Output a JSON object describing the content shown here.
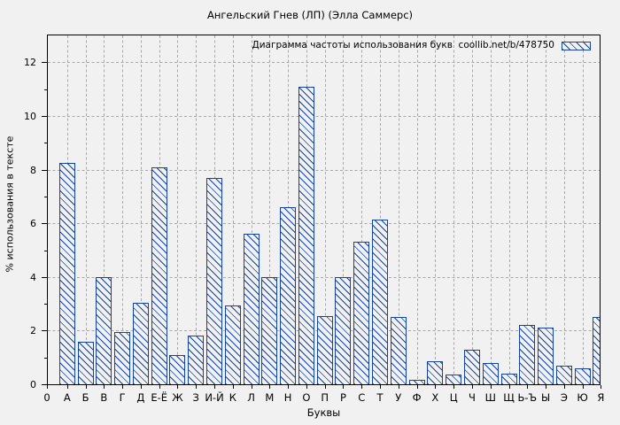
{
  "title": "Ангельский Гнев (ЛП) (Элла Саммерс)",
  "legend": {
    "text": "Диаграмма частоты использования букв  coollib.net/b/478750"
  },
  "chart_data": {
    "type": "bar",
    "title": "Ангельский Гнев (ЛП) (Элла Саммерс)",
    "legend_label": "Диаграмма частоты использования букв  coollib.net/b/478750",
    "legend_position": "top-right-inside",
    "xlabel": "Буквы",
    "ylabel": "% использования в тексте",
    "x_origin_label": "0",
    "y_ticks": [
      0,
      2,
      4,
      6,
      8,
      10,
      12
    ],
    "ylim": [
      0,
      13
    ],
    "grid": true,
    "grid_style": "dashed",
    "bar_color": "#1243a5",
    "bar_hatch": "\\\\",
    "grid_color": "#a8a8a8",
    "background_color": "#f1f1f1",
    "categories": [
      "А",
      "Б",
      "В",
      "Г",
      "Д",
      "Е-Ё",
      "Ж",
      "З",
      "И-Й",
      "К",
      "Л",
      "М",
      "Н",
      "О",
      "П",
      "Р",
      "С",
      "Т",
      "У",
      "Ф",
      "Х",
      "Ц",
      "Ч",
      "Ш",
      "Щ",
      "Ь-Ъ",
      "Ы",
      "Э",
      "Ю",
      "Я"
    ],
    "values": [
      8.25,
      1.6,
      4.0,
      1.95,
      3.05,
      8.1,
      1.1,
      1.8,
      7.7,
      2.95,
      5.6,
      4.0,
      6.6,
      11.1,
      2.55,
      4.0,
      5.3,
      6.15,
      2.5,
      0.15,
      0.85,
      0.35,
      1.3,
      0.8,
      0.4,
      2.2,
      2.1,
      0.7,
      0.6,
      2.5
    ]
  }
}
